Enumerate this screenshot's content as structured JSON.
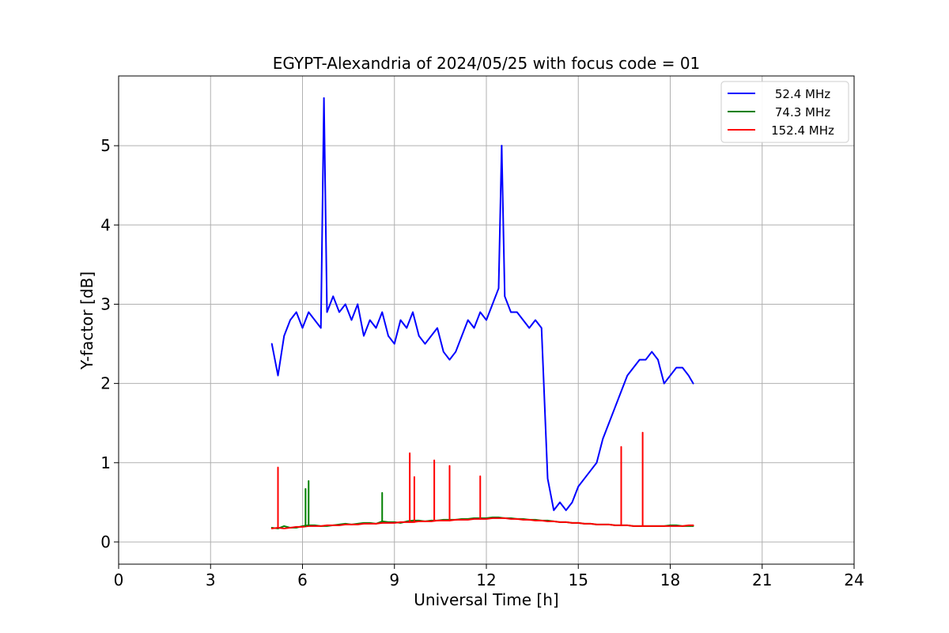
{
  "chart_data": {
    "type": "line",
    "title": "EGYPT-Alexandria of 2024/05/25 with focus code = 01",
    "xlabel": "Universal Time [h]",
    "ylabel": "Y-factor [dB]",
    "xlim": [
      0,
      24
    ],
    "ylim": [
      -0.28,
      5.88
    ],
    "xticks": [
      0,
      3,
      6,
      9,
      12,
      15,
      18,
      21,
      24
    ],
    "xtick_labels": [
      "0",
      "3",
      "6",
      "9",
      "12",
      "15",
      "18",
      "21",
      "24"
    ],
    "yticks": [
      0,
      1,
      2,
      3,
      4,
      5
    ],
    "ytick_labels": [
      "0",
      "1",
      "2",
      "3",
      "4",
      "5"
    ],
    "grid": true,
    "legend_position": "top-right",
    "series": [
      {
        "name": "52.4 MHz",
        "color": "#0000ff",
        "points": [
          [
            5.0,
            2.5
          ],
          [
            5.2,
            2.1
          ],
          [
            5.4,
            2.6
          ],
          [
            5.6,
            2.8
          ],
          [
            5.8,
            2.9
          ],
          [
            6.0,
            2.7
          ],
          [
            6.2,
            2.9
          ],
          [
            6.4,
            2.8
          ],
          [
            6.6,
            2.7
          ],
          [
            6.7,
            5.6
          ],
          [
            6.8,
            2.9
          ],
          [
            7.0,
            3.1
          ],
          [
            7.2,
            2.9
          ],
          [
            7.4,
            3.0
          ],
          [
            7.6,
            2.8
          ],
          [
            7.8,
            3.0
          ],
          [
            8.0,
            2.6
          ],
          [
            8.2,
            2.8
          ],
          [
            8.4,
            2.7
          ],
          [
            8.6,
            2.9
          ],
          [
            8.8,
            2.6
          ],
          [
            9.0,
            2.5
          ],
          [
            9.2,
            2.8
          ],
          [
            9.4,
            2.7
          ],
          [
            9.6,
            2.9
          ],
          [
            9.8,
            2.6
          ],
          [
            10.0,
            2.5
          ],
          [
            10.2,
            2.6
          ],
          [
            10.4,
            2.7
          ],
          [
            10.6,
            2.4
          ],
          [
            10.8,
            2.3
          ],
          [
            11.0,
            2.4
          ],
          [
            11.2,
            2.6
          ],
          [
            11.4,
            2.8
          ],
          [
            11.6,
            2.7
          ],
          [
            11.8,
            2.9
          ],
          [
            12.0,
            2.8
          ],
          [
            12.2,
            3.0
          ],
          [
            12.4,
            3.2
          ],
          [
            12.5,
            5.0
          ],
          [
            12.6,
            3.1
          ],
          [
            12.8,
            2.9
          ],
          [
            13.0,
            2.9
          ],
          [
            13.2,
            2.8
          ],
          [
            13.4,
            2.7
          ],
          [
            13.6,
            2.8
          ],
          [
            13.8,
            2.7
          ],
          [
            14.0,
            0.8
          ],
          [
            14.2,
            0.4
          ],
          [
            14.4,
            0.5
          ],
          [
            14.6,
            0.4
          ],
          [
            14.8,
            0.5
          ],
          [
            15.0,
            0.7
          ],
          [
            15.2,
            0.8
          ],
          [
            15.4,
            0.9
          ],
          [
            15.6,
            1.0
          ],
          [
            15.8,
            1.3
          ],
          [
            16.0,
            1.5
          ],
          [
            16.2,
            1.7
          ],
          [
            16.4,
            1.9
          ],
          [
            16.6,
            2.1
          ],
          [
            16.8,
            2.2
          ],
          [
            17.0,
            2.3
          ],
          [
            17.2,
            2.3
          ],
          [
            17.4,
            2.4
          ],
          [
            17.6,
            2.3
          ],
          [
            17.8,
            2.0
          ],
          [
            18.0,
            2.1
          ],
          [
            18.2,
            2.2
          ],
          [
            18.4,
            2.2
          ],
          [
            18.6,
            2.1
          ],
          [
            18.75,
            2.0
          ]
        ]
      },
      {
        "name": "74.3 MHz",
        "color": "#008000",
        "points": [
          [
            5.0,
            0.18
          ],
          [
            5.2,
            0.17
          ],
          [
            5.4,
            0.2
          ],
          [
            5.6,
            0.18
          ],
          [
            5.8,
            0.18
          ],
          [
            6.0,
            0.2
          ],
          [
            6.2,
            0.21
          ],
          [
            6.4,
            0.21
          ],
          [
            6.6,
            0.2
          ],
          [
            6.8,
            0.2
          ],
          [
            7.0,
            0.21
          ],
          [
            7.2,
            0.22
          ],
          [
            7.4,
            0.23
          ],
          [
            7.6,
            0.22
          ],
          [
            7.8,
            0.23
          ],
          [
            8.0,
            0.24
          ],
          [
            8.2,
            0.24
          ],
          [
            8.4,
            0.23
          ],
          [
            8.6,
            0.26
          ],
          [
            8.8,
            0.25
          ],
          [
            9.0,
            0.25
          ],
          [
            9.2,
            0.24
          ],
          [
            9.4,
            0.26
          ],
          [
            9.6,
            0.27
          ],
          [
            9.8,
            0.27
          ],
          [
            10.0,
            0.26
          ],
          [
            10.2,
            0.27
          ],
          [
            10.4,
            0.27
          ],
          [
            10.6,
            0.28
          ],
          [
            10.8,
            0.28
          ],
          [
            11.0,
            0.28
          ],
          [
            11.2,
            0.29
          ],
          [
            11.4,
            0.29
          ],
          [
            11.6,
            0.3
          ],
          [
            11.8,
            0.3
          ],
          [
            12.0,
            0.3
          ],
          [
            12.2,
            0.31
          ],
          [
            12.4,
            0.31
          ],
          [
            12.6,
            0.3
          ],
          [
            12.8,
            0.3
          ],
          [
            13.0,
            0.29
          ],
          [
            13.2,
            0.29
          ],
          [
            13.4,
            0.28
          ],
          [
            13.6,
            0.28
          ],
          [
            13.8,
            0.27
          ],
          [
            14.0,
            0.27
          ],
          [
            14.2,
            0.26
          ],
          [
            14.4,
            0.25
          ],
          [
            14.6,
            0.25
          ],
          [
            14.8,
            0.24
          ],
          [
            15.0,
            0.24
          ],
          [
            15.2,
            0.23
          ],
          [
            15.4,
            0.23
          ],
          [
            15.6,
            0.22
          ],
          [
            15.8,
            0.22
          ],
          [
            16.0,
            0.22
          ],
          [
            16.2,
            0.21
          ],
          [
            16.4,
            0.21
          ],
          [
            16.6,
            0.21
          ],
          [
            16.8,
            0.2
          ],
          [
            17.0,
            0.2
          ],
          [
            17.2,
            0.2
          ],
          [
            17.4,
            0.2
          ],
          [
            17.6,
            0.2
          ],
          [
            17.8,
            0.2
          ],
          [
            18.0,
            0.21
          ],
          [
            18.2,
            0.21
          ],
          [
            18.4,
            0.2
          ],
          [
            18.6,
            0.2
          ],
          [
            18.75,
            0.2
          ]
        ]
      },
      {
        "name": "152.4 MHz",
        "color": "#ff0000",
        "points": [
          [
            5.0,
            0.17
          ],
          [
            5.2,
            0.18
          ],
          [
            5.4,
            0.17
          ],
          [
            5.6,
            0.18
          ],
          [
            5.8,
            0.19
          ],
          [
            6.0,
            0.19
          ],
          [
            6.2,
            0.2
          ],
          [
            6.4,
            0.2
          ],
          [
            6.6,
            0.2
          ],
          [
            6.8,
            0.21
          ],
          [
            7.0,
            0.21
          ],
          [
            7.2,
            0.21
          ],
          [
            7.4,
            0.22
          ],
          [
            7.6,
            0.22
          ],
          [
            7.8,
            0.22
          ],
          [
            8.0,
            0.23
          ],
          [
            8.2,
            0.23
          ],
          [
            8.4,
            0.23
          ],
          [
            8.6,
            0.24
          ],
          [
            8.8,
            0.24
          ],
          [
            9.0,
            0.24
          ],
          [
            9.2,
            0.25
          ],
          [
            9.4,
            0.25
          ],
          [
            9.6,
            0.25
          ],
          [
            9.8,
            0.26
          ],
          [
            10.0,
            0.26
          ],
          [
            10.2,
            0.26
          ],
          [
            10.4,
            0.27
          ],
          [
            10.6,
            0.27
          ],
          [
            10.8,
            0.27
          ],
          [
            11.0,
            0.28
          ],
          [
            11.2,
            0.28
          ],
          [
            11.4,
            0.28
          ],
          [
            11.6,
            0.29
          ],
          [
            11.8,
            0.29
          ],
          [
            12.0,
            0.29
          ],
          [
            12.2,
            0.3
          ],
          [
            12.4,
            0.3
          ],
          [
            12.6,
            0.3
          ],
          [
            12.8,
            0.29
          ],
          [
            13.0,
            0.29
          ],
          [
            13.2,
            0.28
          ],
          [
            13.4,
            0.28
          ],
          [
            13.6,
            0.27
          ],
          [
            13.8,
            0.27
          ],
          [
            14.0,
            0.26
          ],
          [
            14.2,
            0.26
          ],
          [
            14.4,
            0.25
          ],
          [
            14.6,
            0.25
          ],
          [
            14.8,
            0.24
          ],
          [
            15.0,
            0.24
          ],
          [
            15.2,
            0.23
          ],
          [
            15.4,
            0.23
          ],
          [
            15.6,
            0.22
          ],
          [
            15.8,
            0.22
          ],
          [
            16.0,
            0.22
          ],
          [
            16.2,
            0.21
          ],
          [
            16.4,
            0.21
          ],
          [
            16.6,
            0.21
          ],
          [
            16.8,
            0.2
          ],
          [
            17.0,
            0.2
          ],
          [
            17.2,
            0.2
          ],
          [
            17.4,
            0.2
          ],
          [
            17.6,
            0.2
          ],
          [
            17.8,
            0.2
          ],
          [
            18.0,
            0.2
          ],
          [
            18.2,
            0.2
          ],
          [
            18.4,
            0.2
          ],
          [
            18.6,
            0.21
          ],
          [
            18.75,
            0.21
          ]
        ]
      }
    ],
    "spikes": [
      {
        "series": "52.4 MHz",
        "x": 6.7,
        "y": 5.6
      },
      {
        "series": "52.4 MHz",
        "x": 12.5,
        "y": 5.0
      },
      {
        "series": "74.3 MHz",
        "x": 6.1,
        "y": 0.67
      },
      {
        "series": "74.3 MHz",
        "x": 6.2,
        "y": 0.77
      },
      {
        "series": "74.3 MHz",
        "x": 8.6,
        "y": 0.62
      },
      {
        "series": "152.4 MHz",
        "x": 5.2,
        "y": 0.94
      },
      {
        "series": "152.4 MHz",
        "x": 9.5,
        "y": 1.12
      },
      {
        "series": "152.4 MHz",
        "x": 9.65,
        "y": 0.82
      },
      {
        "series": "152.4 MHz",
        "x": 10.3,
        "y": 1.03
      },
      {
        "series": "152.4 MHz",
        "x": 10.8,
        "y": 0.96
      },
      {
        "series": "152.4 MHz",
        "x": 11.8,
        "y": 0.83
      },
      {
        "series": "152.4 MHz",
        "x": 16.4,
        "y": 1.2
      },
      {
        "series": "152.4 MHz",
        "x": 17.1,
        "y": 1.38
      }
    ]
  }
}
